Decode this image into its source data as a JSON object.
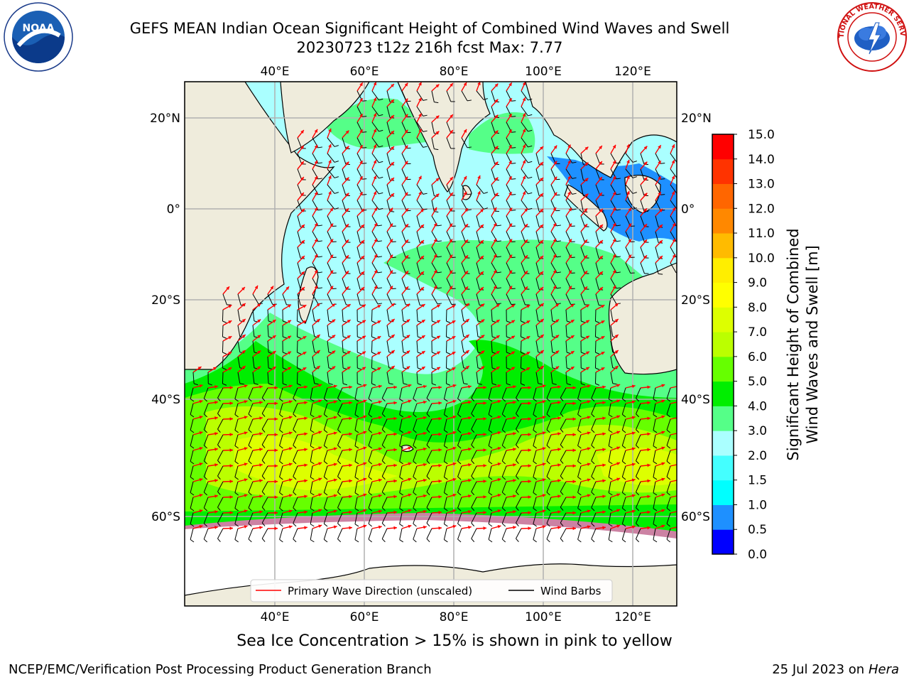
{
  "title": {
    "line1": "GEFS MEAN Indian Ocean Significant Height of Combined Wind Waves and Swell",
    "line2": "20230723 t12z 216h fcst   Max: 7.77"
  },
  "map": {
    "lon_ticks": [
      "40°E",
      "60°E",
      "80°E",
      "100°E",
      "120°E"
    ],
    "lat_ticks": [
      "20°N",
      "0°",
      "20°S",
      "40°S",
      "60°S"
    ],
    "extent": {
      "lon": [
        20,
        130
      ],
      "lat": [
        -70,
        28
      ]
    }
  },
  "legend": {
    "wave_label": "Primary Wave Direction (unscaled)",
    "barb_label": "Wind Barbs",
    "wave_color": "#ff0000",
    "barb_color": "#000000"
  },
  "colorbar": {
    "label_line1": "Significant Height of Combined",
    "label_line2": "Wind Waves and Swell [m]",
    "ticks": [
      "0.0",
      "0.5",
      "1.0",
      "1.5",
      "2.0",
      "3.0",
      "4.0",
      "5.0",
      "6.0",
      "7.0",
      "8.0",
      "9.0",
      "10.0",
      "11.0",
      "12.0",
      "13.0",
      "14.0",
      "15.0"
    ],
    "colors": [
      "#0000ff",
      "#1e90ff",
      "#00ffff",
      "#44ffff",
      "#aaffff",
      "#55ff88",
      "#00ee00",
      "#66ff00",
      "#bbff00",
      "#ddff00",
      "#ffff00",
      "#ffee00",
      "#ffbb00",
      "#ff8800",
      "#ff6600",
      "#ff3300",
      "#ff0000"
    ]
  },
  "ice_note": "Sea Ice Concentration > 15% is shown in pink to yellow",
  "footer": {
    "left": "NCEP/EMC/Verification Post Processing Product Generation Branch",
    "right_date": "25 Jul 2023 on",
    "right_host": "Hera"
  },
  "logos": {
    "noaa_text": "NOAA",
    "nws_text": "NATIONAL WEATHER SERVICE",
    "noaa_ring": "NATIONAL OCEANIC AND ATMOSPHERIC ADMINISTRATION · U.S. DEPARTMENT OF COMMERCE"
  }
}
